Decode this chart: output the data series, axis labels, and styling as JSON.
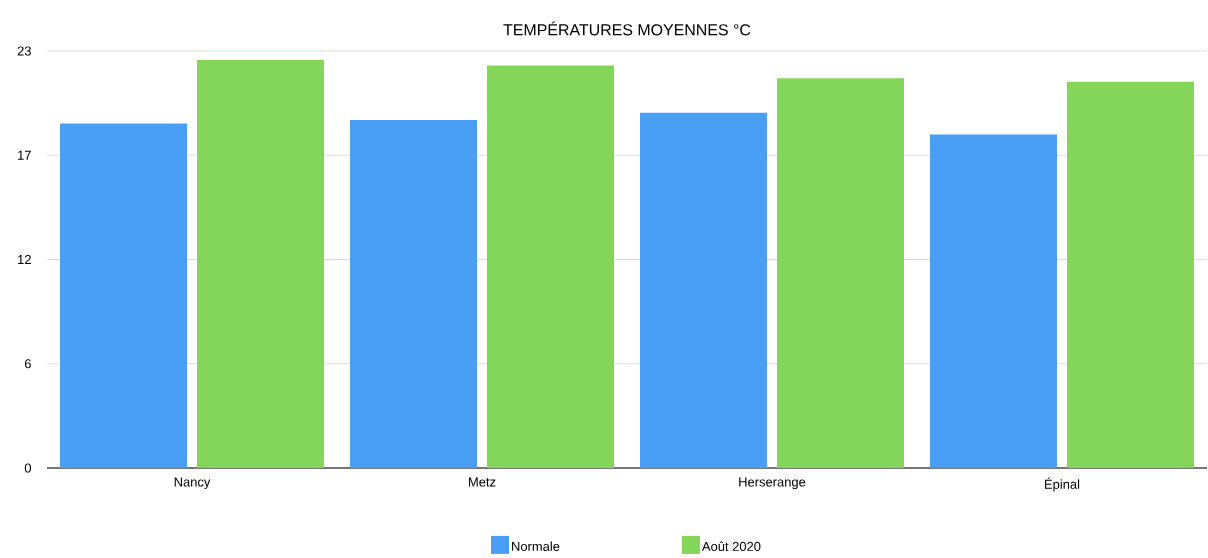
{
  "chart_data": {
    "type": "bar",
    "title": "TEMPÉRATURES MOYENNES °C",
    "categories": [
      "Nancy",
      "Metz",
      "Herserange",
      "Épinal"
    ],
    "series": [
      {
        "name": "Normale",
        "color": "#4a9ff5",
        "values": [
          19.0,
          19.2,
          19.6,
          18.4
        ]
      },
      {
        "name": "Août 2020",
        "color": "#84d65a",
        "values": [
          22.5,
          22.2,
          21.5,
          21.3
        ]
      }
    ],
    "ylim": [
      0,
      23
    ],
    "yticks": [
      0,
      {
        "value": 5.75,
        "label": "6"
      },
      {
        "value": 11.5,
        "label": "12"
      },
      {
        "value": 17.25,
        "label": "17"
      },
      23
    ],
    "grid": "y",
    "legend": "bottom"
  }
}
